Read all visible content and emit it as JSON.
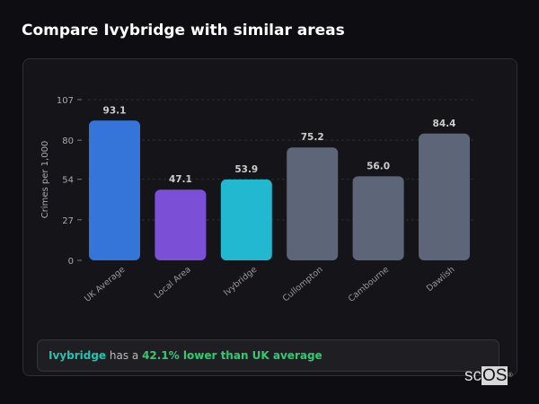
{
  "header": {
    "title": "Compare Ivybridge with similar areas"
  },
  "chart_data": {
    "type": "bar",
    "ylabel": "Crimes per 1,000",
    "ylim": [
      0,
      107
    ],
    "yticks": [
      0,
      27,
      54,
      80,
      107
    ],
    "grid": true,
    "categories": [
      "UK Average",
      "Local Area",
      "Ivybridge",
      "Cullompton",
      "Cambourne",
      "Dawlish"
    ],
    "values": [
      93.1,
      47.1,
      53.9,
      75.2,
      56.0,
      84.4
    ],
    "labels": [
      "93.1",
      "47.1",
      "53.9",
      "75.2",
      "56.0",
      "84.4"
    ],
    "colors": [
      "#3574d9",
      "#7b4fd6",
      "#22b8cf",
      "#5d6678",
      "#5d6678",
      "#5d6678"
    ]
  },
  "summary": {
    "area": "Ivybridge",
    "mid": " has a ",
    "highlight": "42.1% lower than UK average",
    "area_color": "#20c4b0",
    "highlight_color": "#2ecc71"
  },
  "logo": {
    "text_a": "sc",
    "text_b": "OS",
    "mark": "®"
  }
}
